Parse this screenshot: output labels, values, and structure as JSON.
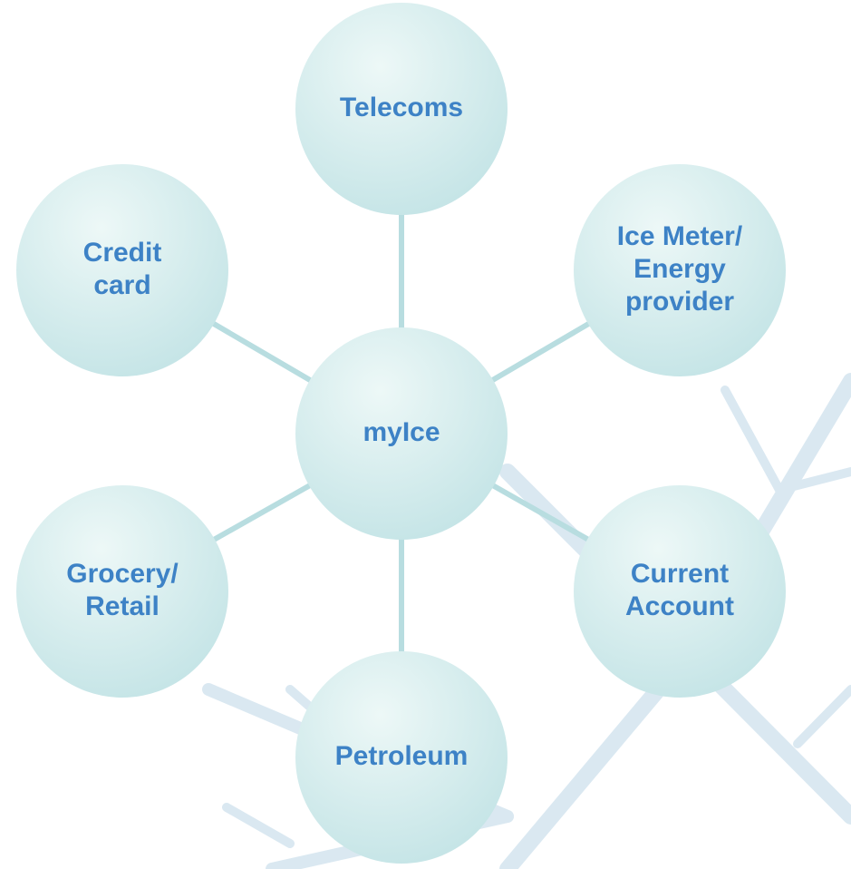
{
  "center": {
    "label_lines": [
      "myIce"
    ]
  },
  "nodes": [
    {
      "label_lines": [
        "Telecoms"
      ]
    },
    {
      "label_lines": [
        "Ice Meter/",
        "Energy",
        "provider"
      ]
    },
    {
      "label_lines": [
        "Current",
        "Account"
      ]
    },
    {
      "label_lines": [
        "Petroleum"
      ]
    },
    {
      "label_lines": [
        "Grocery/",
        "Retail"
      ]
    },
    {
      "label_lines": [
        "Credit",
        "card"
      ]
    }
  ]
}
